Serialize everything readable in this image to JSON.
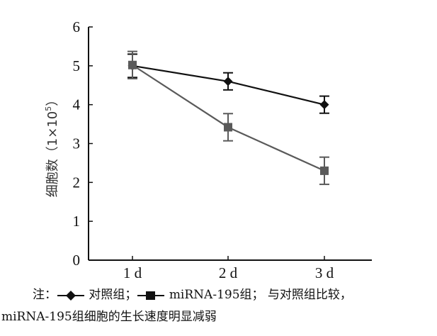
{
  "chart_data": {
    "type": "line",
    "categories": [
      "1 d",
      "2 d",
      "3 d"
    ],
    "ylabel": "细胞数（1×10",
    "ylabel_sup": "5",
    "ylabel_close": "）",
    "ylim": [
      0,
      6
    ],
    "yticks": [
      "0",
      "1",
      "2",
      "3",
      "4",
      "5",
      "6"
    ],
    "grid": false,
    "series": [
      {
        "name": "对照组",
        "marker": "diamond",
        "color": "#111111",
        "values": [
          5.0,
          4.6,
          4.0
        ],
        "errors": [
          0.3,
          0.22,
          0.22
        ]
      },
      {
        "name": "miRNA-195组",
        "marker": "square",
        "color": "#5a5a5a",
        "values": [
          5.02,
          3.42,
          2.3
        ],
        "errors": [
          0.35,
          0.35,
          0.35
        ]
      }
    ]
  },
  "note": {
    "prefix": "注：",
    "control_label": "对照组；",
    "mirna_label": "miRNA-195组；",
    "line1_tail": "与对照组比较，",
    "line2": "miRNA-195组细胞的生长速度明显减弱"
  }
}
